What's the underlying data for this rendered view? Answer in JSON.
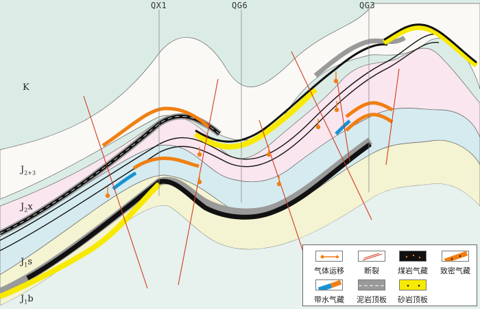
{
  "wells": [
    "QX1",
    "QG6",
    "QG3"
  ],
  "strata": [
    "K",
    "J",
    "2+3",
    "J",
    "2",
    "x",
    "J",
    "1",
    "s",
    "J",
    "1",
    "b"
  ],
  "legend": {
    "gas_migration": "气体运移",
    "fault": "断裂",
    "coal_gas": "煤岩气藏",
    "tight_gas": "致密气藏",
    "water_gas": "带水气藏",
    "mudstone_cap": "泥岩顶板",
    "sandstone_cap": "砂岩顶板"
  },
  "colors": {
    "k_layer": "#dbece7",
    "j23_white": "#fbf9f5",
    "j23_pink": "#f9e6ee",
    "j2x": "#d6ebef",
    "j1s": "#f4f3d2",
    "j1b": "#e7f1ee",
    "coal": "#111111",
    "tight_gas": "#f07f12",
    "water_gas": "#1693d4",
    "mudstone": "#9a9a9a",
    "sandstone": "#f7ea00",
    "fault": "#d23a1e"
  }
}
